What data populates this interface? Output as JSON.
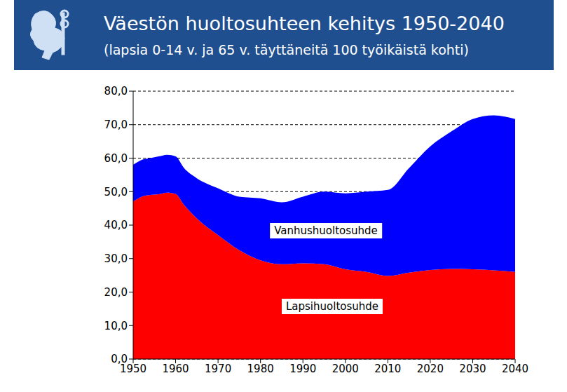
{
  "chart_data": {
    "type": "area",
    "title": "Väestön huoltosuhteen kehitys 1950-2040",
    "subtitle": "(lapsia 0-14 v. ja 65 v. täyttäneitä 100 työikäistä kohti)",
    "x": [
      1950,
      1952,
      1954,
      1956,
      1958,
      1960,
      1962,
      1965,
      1970,
      1975,
      1980,
      1985,
      1990,
      1995,
      2000,
      2005,
      2010,
      2015,
      2020,
      2025,
      2030,
      2035,
      2040
    ],
    "series": [
      {
        "name": "Lapsihuoltosuhde",
        "color": "#ff0000",
        "values": [
          47,
          48.5,
          49,
          49.2,
          49.7,
          49.3,
          46,
          42,
          37,
          32.5,
          29.5,
          28.3,
          28.6,
          28.3,
          26.8,
          26,
          24.8,
          25.8,
          26.6,
          26.9,
          26.8,
          26.5,
          26
        ]
      },
      {
        "name": "Vanhushuoltosuhde",
        "color": "#0000ff",
        "values": [
          11,
          11,
          11,
          11.3,
          11.3,
          11.2,
          11,
          12,
          14,
          16,
          18.5,
          18.5,
          19.9,
          21.7,
          22.7,
          24,
          25.7,
          31.2,
          36.9,
          41.1,
          44.9,
          46.3,
          45.7
        ]
      }
    ],
    "stacked": true,
    "xlim": [
      1950,
      2040
    ],
    "xticks": [
      1950,
      1960,
      1970,
      1980,
      1990,
      2000,
      2010,
      2020,
      2030,
      2040
    ],
    "ylim": [
      0,
      80
    ],
    "yticks": [
      {
        "value": 0,
        "label": "0,0"
      },
      {
        "value": 10,
        "label": "10,0"
      },
      {
        "value": 20,
        "label": "20,0"
      },
      {
        "value": 30,
        "label": "30,0"
      },
      {
        "value": 40,
        "label": "40,0"
      },
      {
        "value": 50,
        "label": "50,0"
      },
      {
        "value": 60,
        "label": "60,0"
      },
      {
        "value": 70,
        "label": "70,0"
      },
      {
        "value": 80,
        "label": "80,0"
      }
    ],
    "grid": true
  }
}
